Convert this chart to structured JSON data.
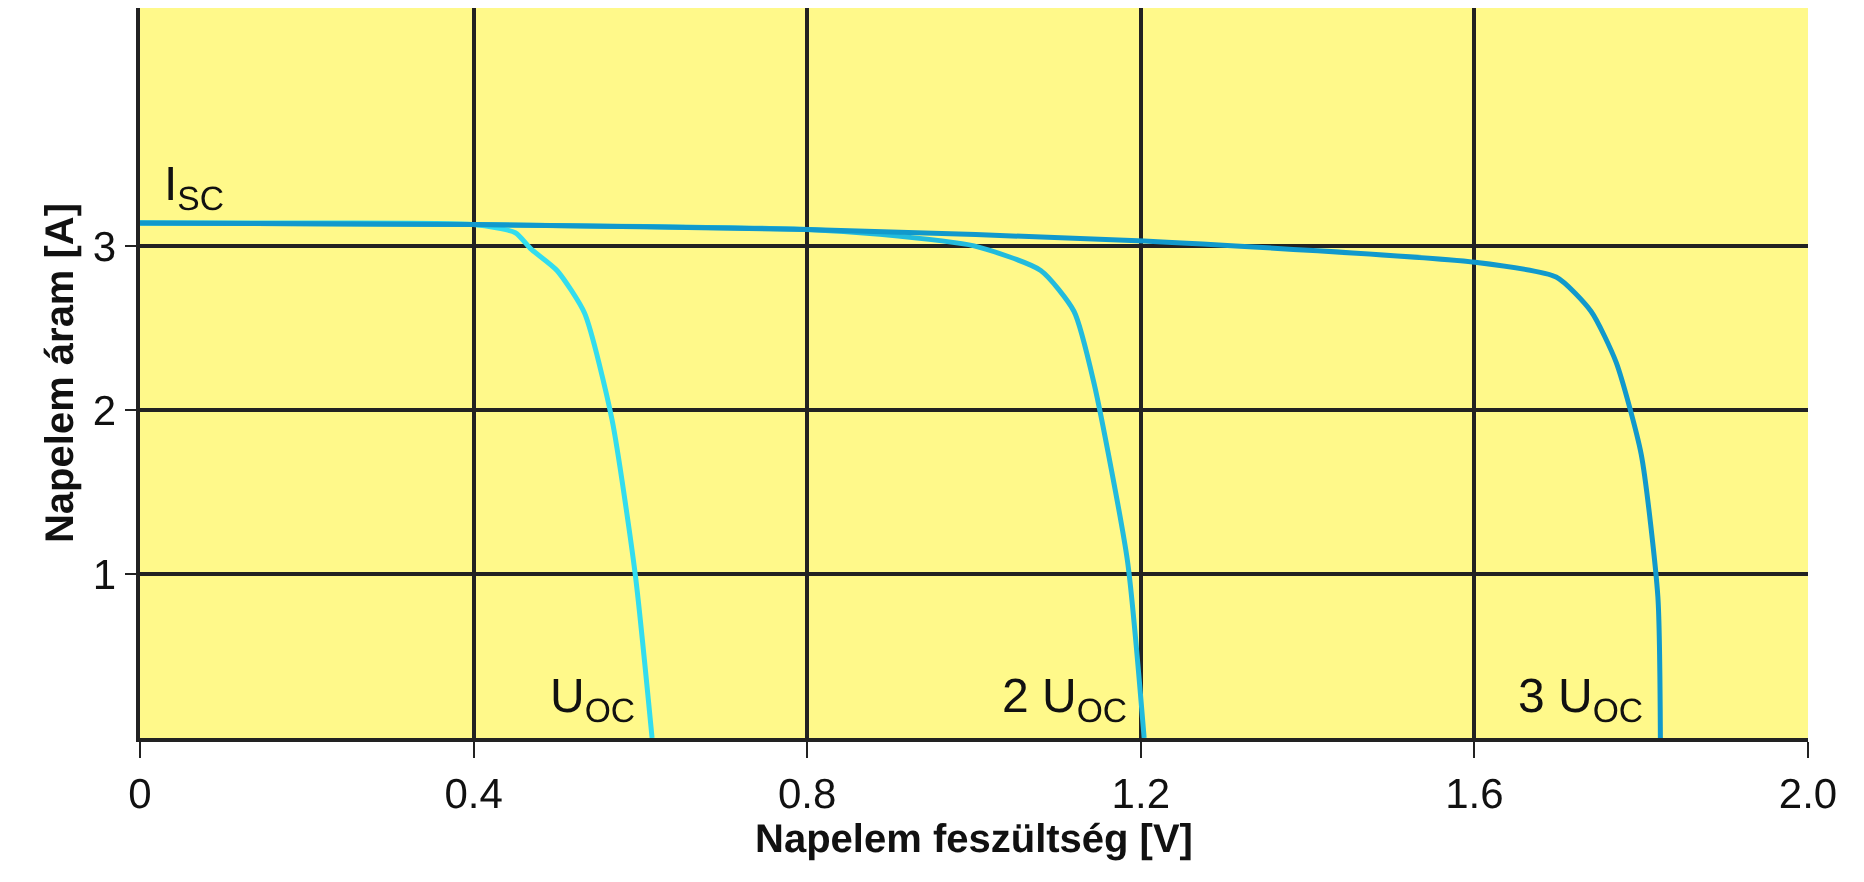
{
  "chart_data": {
    "type": "line",
    "xlabel": "Napelem feszültség [V]",
    "ylabel": "Napelem áram [A]",
    "xlim": [
      0,
      2.0
    ],
    "xticks": [
      0,
      0.4,
      0.8,
      1.2,
      1.6,
      {
        "value": 2.0,
        "label": "2.0"
      }
    ],
    "ylim": [
      0,
      4.45
    ],
    "yticks": [
      1,
      2,
      3
    ],
    "grid": true,
    "series": [
      {
        "color": "#33ddee",
        "x": [
          0,
          0.2,
          0.4,
          0.45,
          0.469,
          0.5,
          0.533,
          0.566,
          0.594,
          0.614
        ],
        "values": [
          3.14,
          3.14,
          3.13,
          3.08,
          2.98,
          2.85,
          2.59,
          1.94,
          0.99,
          0
        ]
      },
      {
        "color": "#22bbdd",
        "x": [
          0,
          0.4,
          0.8,
          0.887,
          1.0,
          1.08,
          1.12,
          1.144,
          1.184,
          1.204
        ],
        "values": [
          3.14,
          3.13,
          3.1,
          3.07,
          3.0,
          2.85,
          2.6,
          2.16,
          1.08,
          0
        ]
      },
      {
        "color": "#1199cc",
        "x": [
          0,
          0.4,
          0.8,
          1.204,
          1.6,
          1.698,
          1.74,
          1.77,
          1.8,
          1.82,
          1.823
        ],
        "values": [
          3.14,
          3.13,
          3.1,
          3.03,
          2.9,
          2.81,
          2.6,
          2.29,
          1.73,
          0.86,
          0
        ]
      }
    ],
    "annotations": [
      {
        "text": "I$_{SC}$",
        "x": 0,
        "y": 3.14
      },
      {
        "text": "U$_{OC}$",
        "x": 0.614,
        "y": 0
      },
      {
        "text": "2 U$_{OC}$",
        "x": 1.204,
        "y": 0
      },
      {
        "text": "3 U$_{OC}$",
        "x": 1.823,
        "y": 0
      }
    ]
  }
}
